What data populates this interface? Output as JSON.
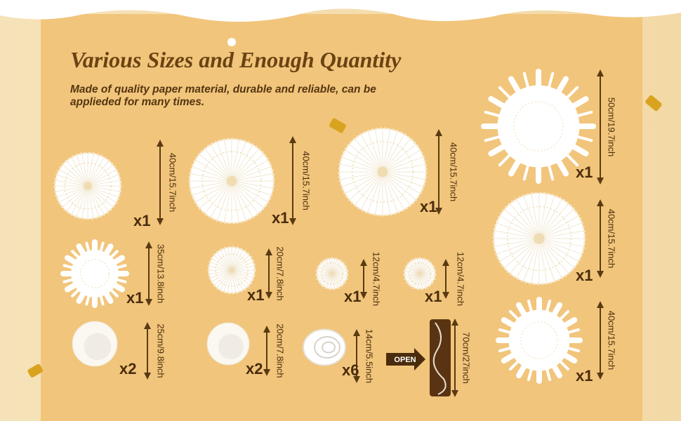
{
  "header": {
    "title": "Various Sizes and Enough Quantity",
    "subtitle_lines": [
      "Made of quality paper material, durable and reliable, can be",
      "applieded for many times."
    ]
  },
  "items": [
    {
      "size": "40cm/15.7inch",
      "quantity": "x1"
    },
    {
      "size": "40cm/15.7inch",
      "quantity": "x1"
    },
    {
      "size": "40cm/15.7inch",
      "quantity": "x1"
    },
    {
      "size": "50cm/19.7inch",
      "quantity": "x1"
    },
    {
      "size": "35cm/13.8inch",
      "quantity": "x1"
    },
    {
      "size": "20cm/7.8inch",
      "quantity": "x1"
    },
    {
      "size": "12cm/4.7inch",
      "quantity": "x1"
    },
    {
      "size": "12cm/4.7inch",
      "quantity": "x1"
    },
    {
      "size": "40cm/15.7inch",
      "quantity": "x1"
    },
    {
      "size": "40cm/15.7inch",
      "quantity": "x1"
    },
    {
      "size": "25cm/9.8inch",
      "quantity": "x2"
    },
    {
      "size": "20cm/7.8inch",
      "quantity": "x2"
    },
    {
      "size": "14cm/5.5inch",
      "quantity": "x6"
    },
    {
      "size": "70cm/27inch"
    }
  ],
  "open_label": "OPEN"
}
